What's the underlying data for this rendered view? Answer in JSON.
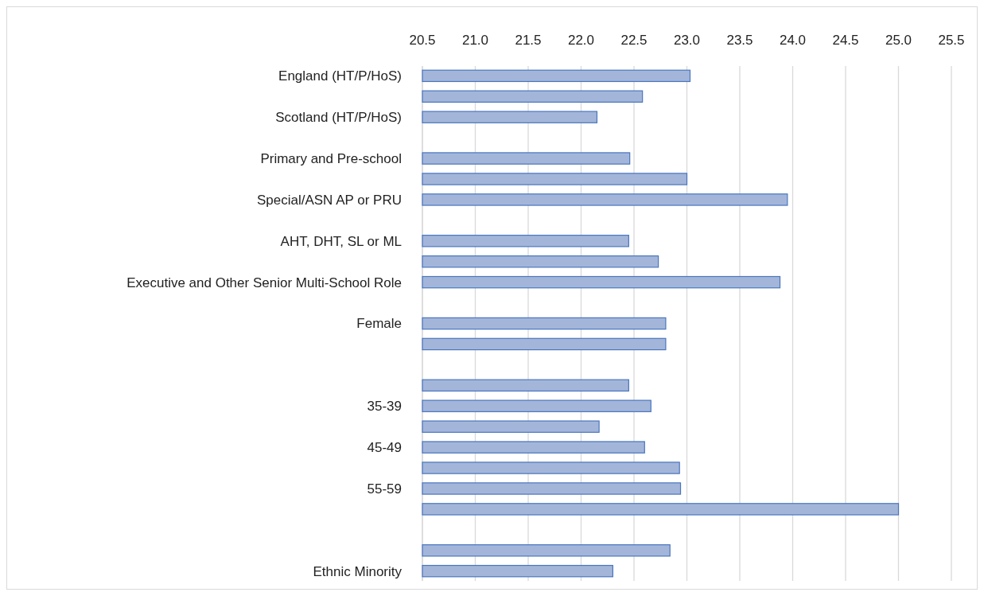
{
  "chart_data": {
    "type": "bar",
    "orientation": "horizontal",
    "categories": [
      "England (HT/P/HoS)",
      null,
      "Scotland (HT/P/HoS)",
      null,
      "Primary and Pre-school",
      null,
      "Special/ASN AP or PRU",
      null,
      "AHT, DHT, SL or ML",
      null,
      "Executive and Other Senior Multi-School Role",
      null,
      "Female",
      null,
      null,
      null,
      "35-39",
      null,
      "45-49",
      null,
      "55-59",
      null,
      null,
      null,
      "Ethnic Minority"
    ],
    "values": [
      23.03,
      22.58,
      22.15,
      null,
      22.46,
      23.0,
      23.95,
      null,
      22.45,
      22.73,
      23.88,
      null,
      22.8,
      22.8,
      null,
      22.45,
      22.66,
      22.17,
      22.6,
      22.93,
      22.94,
      25.0,
      null,
      22.84,
      22.3
    ],
    "color": "#a3b6da",
    "xlim": [
      20.5,
      25.5
    ],
    "xticks": [
      {
        "value": 20.5,
        "label": "20.5"
      },
      {
        "value": 21,
        "label": "21.0"
      },
      {
        "value": 21.5,
        "label": "21.5"
      },
      {
        "value": 22,
        "label": "22.0"
      },
      {
        "value": 22.5,
        "label": "22.5"
      },
      {
        "value": 23,
        "label": "23.0"
      },
      {
        "value": 23.5,
        "label": "23.5"
      },
      {
        "value": 24,
        "label": "24.0"
      },
      {
        "value": 24.5,
        "label": "24.5"
      },
      {
        "value": 25,
        "label": "25.0"
      },
      {
        "value": 25.5,
        "label": "25.5"
      }
    ],
    "grid": "x"
  }
}
